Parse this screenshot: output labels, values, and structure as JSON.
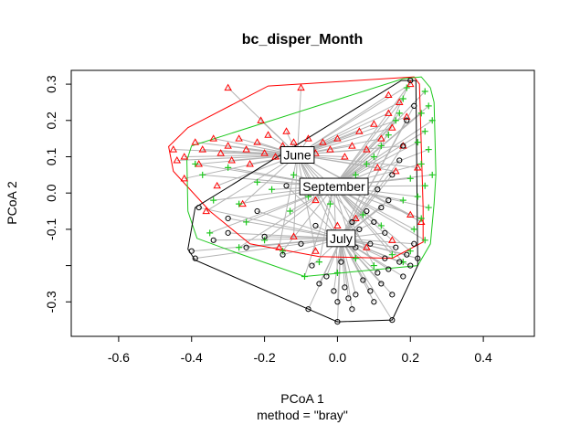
{
  "chart_data": {
    "type": "scatter",
    "title": "bc_disper_Month",
    "xlabel": "PCoA 1",
    "sublabel": "method = \"bray\"",
    "ylabel": "PCoA 2",
    "xlim": [
      -0.73,
      0.54
    ],
    "ylim": [
      -0.395,
      0.338
    ],
    "xticks": [
      -0.6,
      -0.4,
      -0.2,
      0.0,
      0.2,
      0.4
    ],
    "xtick_labels": [
      "-0.6",
      "-0.4",
      "-0.2",
      "0.0",
      "0.2",
      "0.4"
    ],
    "yticks": [
      -0.3,
      -0.2,
      -0.1,
      0.0,
      0.1,
      0.2,
      0.3
    ],
    "ytick_labels": [
      "-0.3",
      "",
      "-0.1",
      "0.0",
      "0.1",
      "0.2",
      "0.3"
    ],
    "grid": false,
    "spider_color": "#b4b4b4",
    "series": [
      {
        "name": "June",
        "color": "#ff0000",
        "marker": "triangle",
        "centroid": [
          -0.11,
          0.105
        ],
        "hull": [
          [
            -0.463,
            0.128
          ],
          [
            -0.41,
            0.18
          ],
          [
            -0.19,
            0.295
          ],
          [
            0.21,
            0.32
          ],
          [
            0.225,
            0.3
          ],
          [
            0.235,
            -0.04
          ],
          [
            0.235,
            -0.135
          ],
          [
            0.15,
            -0.18
          ],
          [
            -0.05,
            -0.175
          ],
          [
            -0.24,
            -0.14
          ],
          [
            -0.35,
            -0.05
          ],
          [
            -0.45,
            0.06
          ]
        ],
        "points": [
          [
            -0.45,
            0.12
          ],
          [
            -0.42,
            0.1
          ],
          [
            -0.44,
            0.09
          ],
          [
            -0.39,
            0.14
          ],
          [
            -0.37,
            0.12
          ],
          [
            -0.34,
            0.15
          ],
          [
            -0.32,
            0.11
          ],
          [
            -0.3,
            0.13
          ],
          [
            -0.29,
            0.09
          ],
          [
            -0.27,
            0.15
          ],
          [
            -0.25,
            0.12
          ],
          [
            -0.22,
            0.14
          ],
          [
            -0.2,
            0.11
          ],
          [
            -0.19,
            0.16
          ],
          [
            -0.17,
            0.1
          ],
          [
            -0.15,
            0.13
          ],
          [
            -0.14,
            0.17
          ],
          [
            -0.12,
            0.14
          ],
          [
            -0.1,
            0.12
          ],
          [
            -0.08,
            0.15
          ],
          [
            -0.06,
            0.11
          ],
          [
            -0.04,
            0.14
          ],
          [
            -0.02,
            0.12
          ],
          [
            0.0,
            0.15
          ],
          [
            0.02,
            0.1
          ],
          [
            0.04,
            0.13
          ],
          [
            0.06,
            0.17
          ],
          [
            0.08,
            0.12
          ],
          [
            0.1,
            0.19
          ],
          [
            0.12,
            0.15
          ],
          [
            0.14,
            0.22
          ],
          [
            0.15,
            0.18
          ],
          [
            0.17,
            0.25
          ],
          [
            0.18,
            0.13
          ],
          [
            0.2,
            0.3
          ],
          [
            0.19,
            0.21
          ],
          [
            0.14,
            0.27
          ],
          [
            -0.3,
            0.29
          ],
          [
            -0.1,
            0.29
          ],
          [
            -0.21,
            0.2
          ],
          [
            -0.36,
            -0.05
          ],
          [
            -0.33,
            0.02
          ],
          [
            -0.26,
            -0.03
          ],
          [
            -0.16,
            -0.15
          ],
          [
            -0.12,
            -0.12
          ],
          [
            -0.06,
            -0.02
          ],
          [
            -0.06,
            -0.16
          ],
          [
            0.0,
            -0.09
          ],
          [
            0.01,
            -0.14
          ],
          [
            0.05,
            -0.07
          ],
          [
            0.08,
            -0.15
          ],
          [
            0.15,
            -0.13
          ],
          [
            0.2,
            -0.06
          ],
          [
            0.22,
            0.07
          ],
          [
            0.23,
            -0.08
          ],
          [
            0.16,
            0.06
          ],
          [
            0.11,
            0.07
          ],
          [
            -0.38,
            0.08
          ],
          [
            -0.42,
            0.04
          ],
          [
            -0.24,
            0.08
          ]
        ]
      },
      {
        "name": "September",
        "color": "#1ec81e",
        "marker": "plus",
        "centroid": [
          -0.01,
          0.018
        ],
        "hull": [
          [
            -0.413,
            0.09
          ],
          [
            -0.4,
            0.13
          ],
          [
            0.18,
            0.315
          ],
          [
            0.23,
            0.32
          ],
          [
            0.255,
            0.29
          ],
          [
            0.265,
            0.25
          ],
          [
            0.27,
            0.05
          ],
          [
            0.265,
            -0.03
          ],
          [
            0.255,
            -0.14
          ],
          [
            0.22,
            -0.2
          ],
          [
            -0.09,
            -0.23
          ],
          [
            -0.29,
            -0.16
          ],
          [
            -0.385,
            -0.125
          ],
          [
            -0.41,
            -0.05
          ]
        ],
        "points": [
          [
            0.24,
            0.28
          ],
          [
            0.25,
            0.24
          ],
          [
            0.23,
            0.22
          ],
          [
            0.26,
            0.2
          ],
          [
            0.24,
            0.17
          ],
          [
            0.22,
            0.14
          ],
          [
            0.25,
            0.12
          ],
          [
            0.23,
            0.08
          ],
          [
            0.26,
            0.05
          ],
          [
            0.24,
            0.02
          ],
          [
            0.22,
            -0.01
          ],
          [
            0.25,
            -0.04
          ],
          [
            0.23,
            -0.07
          ],
          [
            0.21,
            -0.1
          ],
          [
            0.24,
            -0.13
          ],
          [
            0.2,
            -0.16
          ],
          [
            0.18,
            -0.19
          ],
          [
            0.15,
            -0.17
          ],
          [
            0.1,
            -0.2
          ],
          [
            0.05,
            -0.18
          ],
          [
            0.0,
            -0.22
          ],
          [
            -0.05,
            -0.19
          ],
          [
            -0.09,
            -0.23
          ],
          [
            -0.15,
            -0.16
          ],
          [
            -0.2,
            -0.13
          ],
          [
            -0.27,
            -0.15
          ],
          [
            -0.35,
            -0.11
          ],
          [
            -0.39,
            0.08
          ],
          [
            -0.37,
            0.05
          ],
          [
            -0.3,
            0.07
          ],
          [
            -0.27,
            -0.03
          ],
          [
            -0.22,
            0.03
          ],
          [
            -0.18,
            0.01
          ],
          [
            -0.13,
            -0.05
          ],
          [
            -0.08,
            -0.01
          ],
          [
            -0.05,
            0.02
          ],
          [
            -0.02,
            -0.03
          ],
          [
            0.02,
            0.02
          ],
          [
            0.05,
            0.05
          ],
          [
            0.08,
            0.08
          ],
          [
            0.1,
            0.1
          ],
          [
            0.12,
            0.13
          ],
          [
            0.14,
            0.16
          ],
          [
            0.16,
            0.2
          ],
          [
            0.18,
            0.26
          ],
          [
            0.19,
            0.29
          ],
          [
            0.17,
            0.22
          ],
          [
            -0.12,
            0.05
          ],
          [
            -0.25,
            -0.08
          ],
          [
            -0.34,
            -0.02
          ],
          [
            0.07,
            -0.06
          ],
          [
            0.12,
            -0.09
          ],
          [
            0.18,
            -0.02
          ],
          [
            0.2,
            0.04
          ]
        ]
      },
      {
        "name": "July",
        "color": "#000000",
        "marker": "circle",
        "centroid": [
          0.01,
          -0.125
        ],
        "hull": [
          [
            -0.41,
            -0.155
          ],
          [
            -0.39,
            -0.04
          ],
          [
            0.175,
            0.31
          ],
          [
            0.215,
            0.31
          ],
          [
            0.22,
            -0.2
          ],
          [
            0.15,
            -0.35
          ],
          [
            0.0,
            -0.355
          ],
          [
            -0.08,
            -0.32
          ],
          [
            -0.39,
            -0.185
          ]
        ],
        "points": [
          [
            -0.4,
            -0.16
          ],
          [
            -0.39,
            -0.18
          ],
          [
            -0.38,
            -0.04
          ],
          [
            -0.34,
            -0.13
          ],
          [
            -0.3,
            -0.11
          ],
          [
            -0.25,
            -0.15
          ],
          [
            -0.2,
            -0.12
          ],
          [
            -0.15,
            -0.17
          ],
          [
            -0.1,
            -0.14
          ],
          [
            -0.07,
            -0.2
          ],
          [
            -0.05,
            -0.25
          ],
          [
            -0.03,
            -0.23
          ],
          [
            -0.01,
            -0.27
          ],
          [
            0.0,
            -0.3
          ],
          [
            0.02,
            -0.26
          ],
          [
            0.03,
            -0.29
          ],
          [
            0.04,
            -0.32
          ],
          [
            0.05,
            -0.28
          ],
          [
            0.07,
            -0.24
          ],
          [
            0.09,
            -0.27
          ],
          [
            0.1,
            -0.3
          ],
          [
            0.11,
            -0.22
          ],
          [
            0.12,
            -0.25
          ],
          [
            0.13,
            -0.18
          ],
          [
            0.14,
            -0.21
          ],
          [
            0.15,
            -0.28
          ],
          [
            0.16,
            -0.15
          ],
          [
            0.17,
            -0.19
          ],
          [
            0.18,
            -0.23
          ],
          [
            0.19,
            -0.17
          ],
          [
            0.2,
            -0.2
          ],
          [
            0.21,
            -0.14
          ],
          [
            0.22,
            -0.18
          ],
          [
            -0.08,
            -0.32
          ],
          [
            0.0,
            -0.355
          ],
          [
            0.15,
            -0.35
          ],
          [
            0.08,
            -0.05
          ],
          [
            0.1,
            -0.08
          ],
          [
            0.12,
            -0.04
          ],
          [
            0.06,
            -0.1
          ],
          [
            0.13,
            -0.11
          ],
          [
            0.14,
            -0.02
          ],
          [
            0.09,
            -0.14
          ],
          [
            0.11,
            0.01
          ],
          [
            0.15,
            0.05
          ],
          [
            0.17,
            0.09
          ],
          [
            0.18,
            0.13
          ],
          [
            0.19,
            0.2
          ],
          [
            0.2,
            0.31
          ],
          [
            0.21,
            0.24
          ],
          [
            -0.14,
            0.02
          ],
          [
            -0.22,
            -0.05
          ],
          [
            -0.3,
            -0.07
          ],
          [
            0.01,
            -0.19
          ],
          [
            0.05,
            -0.15
          ],
          [
            -0.02,
            -0.12
          ],
          [
            0.04,
            -0.08
          ],
          [
            -0.06,
            -0.09
          ]
        ]
      }
    ]
  }
}
